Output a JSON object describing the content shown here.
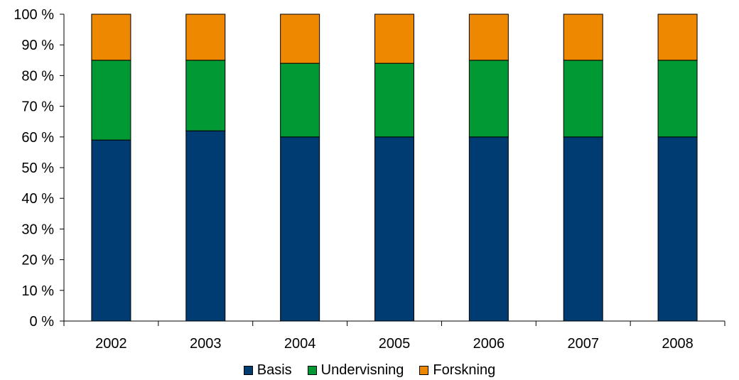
{
  "chart_data": {
    "type": "bar",
    "stacked": true,
    "categories": [
      "2002",
      "2003",
      "2004",
      "2005",
      "2006",
      "2007",
      "2008"
    ],
    "series": [
      {
        "name": "Basis",
        "color": "#003C71",
        "values": [
          59,
          62,
          60,
          60,
          60,
          60,
          60
        ]
      },
      {
        "name": "Undervisning",
        "color": "#009933",
        "values": [
          26,
          23,
          24,
          24,
          25,
          25,
          25
        ]
      },
      {
        "name": "Forskning",
        "color": "#EE8800",
        "values": [
          15,
          15,
          16,
          16,
          15,
          15,
          15
        ]
      }
    ],
    "y_ticks": [
      "0 %",
      "10 %",
      "20 %",
      "30 %",
      "40 %",
      "50 %",
      "60 %",
      "70 %",
      "80 %",
      "90 %",
      "100 %"
    ],
    "ylim": [
      0,
      100
    ],
    "legend_position": "bottom"
  }
}
